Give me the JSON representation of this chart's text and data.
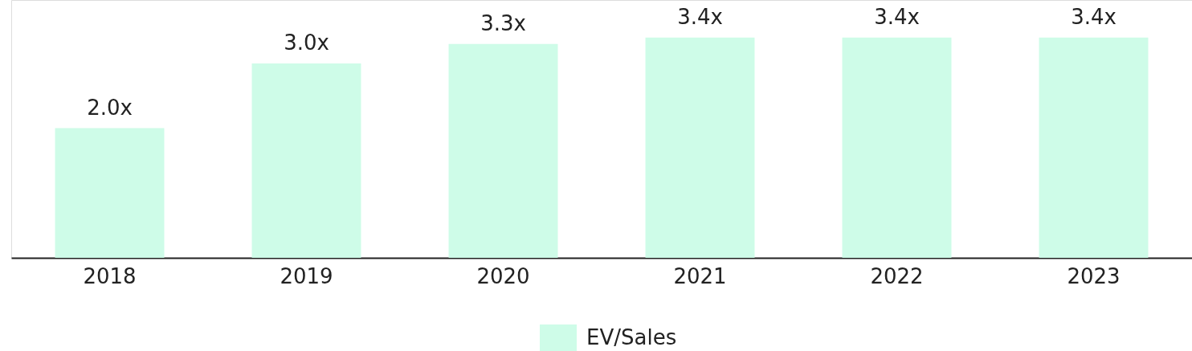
{
  "chart_data": {
    "type": "bar",
    "categories": [
      "2018",
      "2019",
      "2020",
      "2021",
      "2022",
      "2023"
    ],
    "series": [
      {
        "name": "EV/Sales",
        "color": "#cefce8",
        "values": [
          2.0,
          3.0,
          3.3,
          3.4,
          3.4,
          3.4
        ],
        "value_labels": [
          "2.0x",
          "3.0x",
          "3.3x",
          "3.4x",
          "3.4x",
          "3.4x"
        ]
      }
    ],
    "legend": "bottom",
    "grid": false
  }
}
